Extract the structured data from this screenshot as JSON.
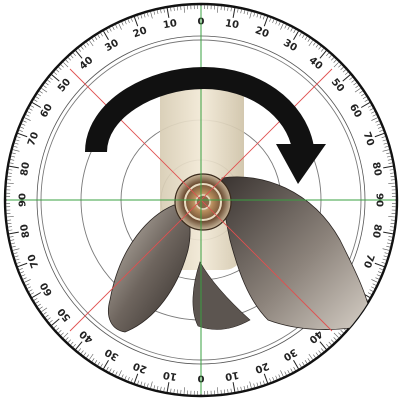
{
  "image": {
    "title": "",
    "description_hidden": true
  },
  "protractor": {
    "top_labels_left": [
      "50",
      "40",
      "30",
      "20",
      "10"
    ],
    "top_center": "0",
    "top_labels_right": [
      "10",
      "20",
      "30",
      "40",
      "50"
    ],
    "side_labels_left": [
      "60",
      "70",
      "80",
      "90",
      "80",
      "70",
      "60"
    ],
    "side_labels_right": [
      "60",
      "70",
      "80",
      "90",
      "80",
      "70",
      "60"
    ],
    "bottom_labels_left": [
      "50",
      "40",
      "30",
      "20",
      "10"
    ],
    "bottom_center": "0",
    "bottom_labels_right": [
      "10",
      "20",
      "30",
      "40",
      "50"
    ],
    "colors": {
      "ring": "#111111",
      "ticks": "#333333",
      "red_guides": "#e05050",
      "green_guides": "#3aa040",
      "inner_circles": "#888888"
    }
  },
  "object": {
    "rotation_arrow": "clockwise-arrow-icon",
    "colors": {
      "shaft": "#e9dfc7",
      "blade_dark": "#4a4440",
      "blade_light": "#b8b0a8",
      "hub": "#8a6a4a"
    }
  }
}
